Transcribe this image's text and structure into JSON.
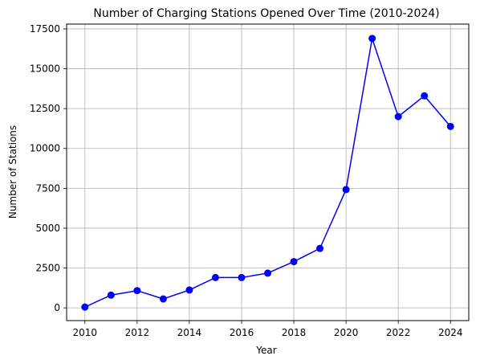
{
  "chart_data": {
    "type": "line",
    "title": "Number of Charging Stations Opened Over Time (2010-2024)",
    "xlabel": "Year",
    "ylabel": "Number of Stations",
    "x": [
      2010,
      2011,
      2012,
      2013,
      2014,
      2015,
      2016,
      2017,
      2018,
      2019,
      2020,
      2021,
      2022,
      2023,
      2024
    ],
    "series": [
      {
        "values": [
          50,
          800,
          1080,
          560,
          1120,
          1900,
          1900,
          2180,
          2900,
          3730,
          7420,
          16900,
          12000,
          13300,
          11380
        ],
        "color": "#0000ff",
        "marker": "circle"
      }
    ],
    "xlim": [
      2009.3,
      2024.7
    ],
    "ylim": [
      -800,
      17800
    ],
    "xticks": [
      2010,
      2012,
      2014,
      2016,
      2018,
      2020,
      2022,
      2024
    ],
    "yticks": [
      0,
      2500,
      5000,
      7500,
      10000,
      12500,
      15000,
      17500
    ],
    "grid": true
  }
}
